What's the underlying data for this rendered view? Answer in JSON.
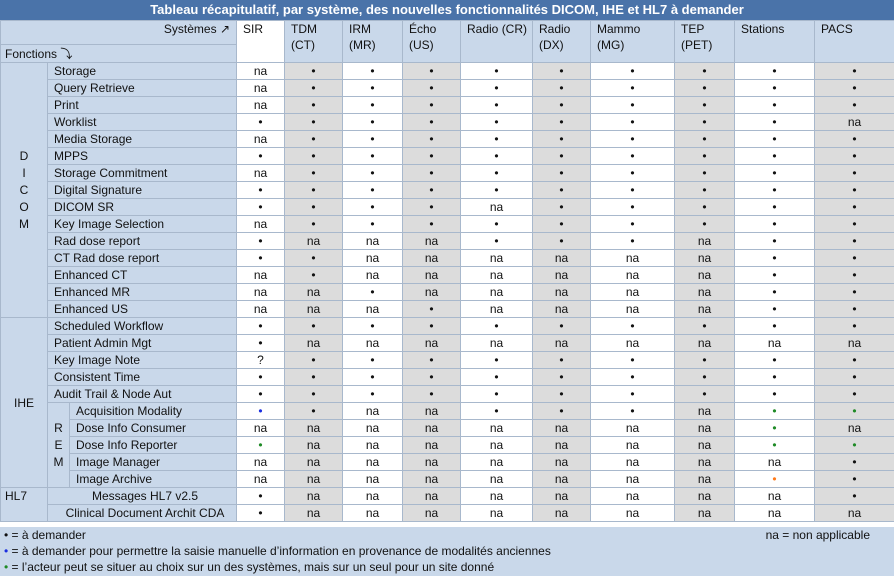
{
  "title": "Tableau récapitulatif, par système, des nouvelles fonctionnalités DICOM, IHE et HL7 à demander",
  "header": {
    "systemes_label": "Systèmes ↗",
    "fonctions_label": "Fonctions ⤵",
    "systems": [
      {
        "line1": "SIR",
        "line2": ""
      },
      {
        "line1": "TDM",
        "line2": "(CT)"
      },
      {
        "line1": "IRM",
        "line2": "(MR)"
      },
      {
        "line1": "Écho",
        "line2": "(US)"
      },
      {
        "line1": "Radio (CR)",
        "line2": ""
      },
      {
        "line1": "Radio",
        "line2": "(DX)"
      },
      {
        "line1": "Mammo",
        "line2": "(MG)"
      },
      {
        "line1": "TEP",
        "line2": "(PET)"
      },
      {
        "line1": "Stations",
        "line2": ""
      },
      {
        "line1": "PACS",
        "line2": ""
      }
    ]
  },
  "groups": {
    "dicom": "D I C O M",
    "ihe": "IHE",
    "rem": "R E M",
    "hl7": "HL7"
  },
  "rows": [
    {
      "label": "Storage",
      "cells": [
        "na",
        "•",
        "•",
        "•",
        "•",
        "•",
        "•",
        "•",
        "•",
        "•"
      ]
    },
    {
      "label": "Query Retrieve",
      "cells": [
        "na",
        "•",
        "•",
        "•",
        "•",
        "•",
        "•",
        "•",
        "•",
        "•"
      ]
    },
    {
      "label": "Print",
      "cells": [
        "na",
        "•",
        "•",
        "•",
        "•",
        "•",
        "•",
        "•",
        "•",
        "•"
      ]
    },
    {
      "label": "Worklist",
      "cells": [
        "•",
        "•",
        "•",
        "•",
        "•",
        "•",
        "•",
        "•",
        "•",
        "na"
      ]
    },
    {
      "label": "Media Storage",
      "cells": [
        "na",
        "•",
        "•",
        "•",
        "•",
        "•",
        "•",
        "•",
        "•",
        "•"
      ]
    },
    {
      "label": "MPPS",
      "cells": [
        "•",
        "•",
        "•",
        "•",
        "•",
        "•",
        "•",
        "•",
        "•",
        "•"
      ]
    },
    {
      "label": "Storage Commitment",
      "cells": [
        "na",
        "•",
        "•",
        "•",
        "•",
        "•",
        "•",
        "•",
        "•",
        "•"
      ]
    },
    {
      "label": "Digital Signature",
      "cells": [
        "•",
        "•",
        "•",
        "•",
        "•",
        "•",
        "•",
        "•",
        "•",
        "•"
      ]
    },
    {
      "label": "DICOM SR",
      "cells": [
        "•",
        "•",
        "•",
        "•",
        "na",
        "•",
        "•",
        "•",
        "•",
        "•"
      ]
    },
    {
      "label": "Key Image Selection",
      "cells": [
        "na",
        "•",
        "•",
        "•",
        "•",
        "•",
        "•",
        "•",
        "•",
        "•"
      ]
    },
    {
      "label": "Rad  dose report",
      "cells": [
        "•",
        "na",
        "na",
        "na",
        "•",
        "•",
        "•",
        "na",
        "•",
        "•"
      ]
    },
    {
      "label": "CT Rad dose report",
      "cells": [
        "•",
        "•",
        "na",
        "na",
        "na",
        "na",
        "na",
        "na",
        "•",
        "•"
      ]
    },
    {
      "label": "Enhanced CT",
      "cells": [
        "na",
        "•",
        "na",
        "na",
        "na",
        "na",
        "na",
        "na",
        "•",
        "•"
      ]
    },
    {
      "label": "Enhanced MR",
      "cells": [
        "na",
        "na",
        "•",
        "na",
        "na",
        "na",
        "na",
        "na",
        "•",
        "•"
      ]
    },
    {
      "label": "Enhanced US",
      "cells": [
        "na",
        "na",
        "na",
        "•",
        "na",
        "na",
        "na",
        "na",
        "•",
        "•"
      ]
    },
    {
      "label": "Scheduled Workflow",
      "cells": [
        "•",
        "•",
        "•",
        "•",
        "•",
        "•",
        "•",
        "•",
        "•",
        "•"
      ]
    },
    {
      "label": "Patient Admin Mgt",
      "cells": [
        "•",
        "na",
        "na",
        "na",
        "na",
        "na",
        "na",
        "na",
        "na",
        "na"
      ]
    },
    {
      "label": "Key Image Note",
      "cells": [
        "?",
        "•",
        "•",
        "•",
        "•",
        "•",
        "•",
        "•",
        "•",
        "•"
      ]
    },
    {
      "label": "Consistent Time",
      "cells": [
        "•",
        "•",
        "•",
        "•",
        "•",
        "•",
        "•",
        "•",
        "•",
        "•"
      ]
    },
    {
      "label": "Audit Trail & Node Aut",
      "cells": [
        "•",
        "•",
        "•",
        "•",
        "•",
        "•",
        "•",
        "•",
        "•",
        "•"
      ]
    },
    {
      "label": "Acquisition Modality",
      "cells": [
        "•",
        "•",
        "na",
        "na",
        "•",
        "•",
        "•",
        "na",
        "•",
        "•"
      ]
    },
    {
      "label": "Dose Info Consumer",
      "cells": [
        "na",
        "na",
        "na",
        "na",
        "na",
        "na",
        "na",
        "na",
        "•",
        "na"
      ]
    },
    {
      "label": "Dose Info  Reporter",
      "cells": [
        "•",
        "na",
        "na",
        "na",
        "na",
        "na",
        "na",
        "na",
        "•",
        "•"
      ]
    },
    {
      "label": "Image Manager",
      "cells": [
        "na",
        "na",
        "na",
        "na",
        "na",
        "na",
        "na",
        "na",
        "na",
        "•"
      ]
    },
    {
      "label": "Image Archive",
      "cells": [
        "na",
        "na",
        "na",
        "na",
        "na",
        "na",
        "na",
        "na",
        "•",
        "•"
      ]
    },
    {
      "label": "Messages HL7 v2.5",
      "cells": [
        "•",
        "na",
        "na",
        "na",
        "na",
        "na",
        "na",
        "na",
        "na",
        "•"
      ]
    },
    {
      "label": "Clinical Document Archit CDA",
      "cells": [
        "•",
        "na",
        "na",
        "na",
        "na",
        "na",
        "na",
        "na",
        "na",
        "na"
      ]
    }
  ],
  "colored_dots": [
    {
      "row": 20,
      "col": 0,
      "color": "#1a2ee0"
    },
    {
      "row": 20,
      "col": 8,
      "color": "#1e8a25"
    },
    {
      "row": 20,
      "col": 9,
      "color": "#1e8a25"
    },
    {
      "row": 21,
      "col": 8,
      "color": "#1e8a25"
    },
    {
      "row": 22,
      "col": 0,
      "color": "#1e8a25"
    },
    {
      "row": 22,
      "col": 8,
      "color": "#1e8a25"
    },
    {
      "row": 22,
      "col": 9,
      "color": "#1e8a25"
    },
    {
      "row": 24,
      "col": 8,
      "color": "#ff7a1a"
    }
  ],
  "legend": {
    "line1": "• = à demander",
    "line2_dot": "•",
    "line2_text": " = à demander pour permettre la saisie manuelle d’information en provenance de modalités anciennes",
    "line3_dot": "•",
    "line3_text": " = l’acteur peut se situer au choix sur un des systèmes, mais sur un seul pour un site donné",
    "na": "na = non applicable"
  },
  "colors": {
    "title_bg": "#4a73a9",
    "header_bg": "#c9d8ea",
    "alt_col_bg": "#dcdcdc",
    "blue_dot": "#1a2ee0",
    "green_dot": "#1e8a25",
    "orange_dot": "#ff7a1a"
  }
}
